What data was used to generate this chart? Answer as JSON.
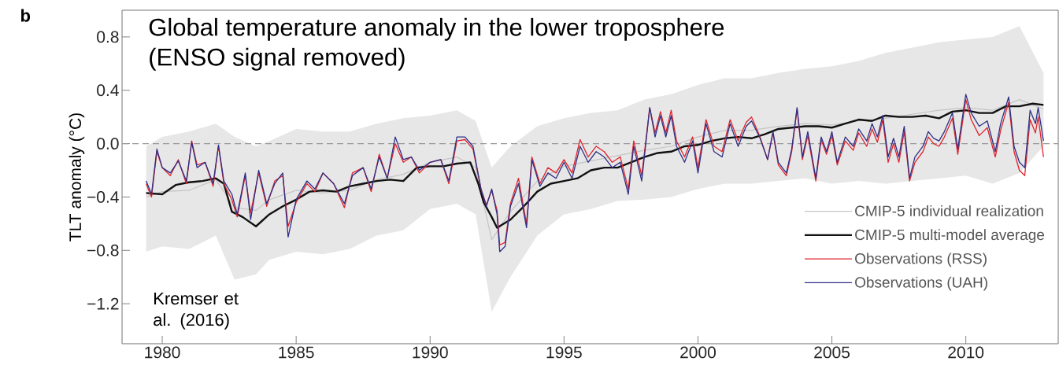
{
  "chart_data": {
    "type": "line",
    "title": "Global temperature anomaly in the lower troposphere",
    "subtitle": "(ENSO signal removed)",
    "ylabel": "TLT anomaly (°C)",
    "annotations": [
      "b",
      "Kremser et al. (2016)"
    ],
    "xlim": [
      1978.5,
      2013.45
    ],
    "ylim": [
      -1.5,
      1.0
    ],
    "xticks": [
      1980,
      1985,
      1990,
      1995,
      2000,
      2005,
      2010
    ],
    "yticks": [
      {
        "value": 0.8,
        "label": "0.8"
      },
      {
        "value": 0.4,
        "label": "0.4"
      },
      {
        "value": 0.0,
        "label": "0.0"
      },
      {
        "value": -0.4,
        "label": "−0.4"
      },
      {
        "value": -0.8,
        "label": "−0.8"
      },
      {
        "value": -1.2,
        "label": "−1.2"
      }
    ],
    "ref_lines": [
      {
        "axis": "y",
        "value": 0.0,
        "color": "#999999",
        "line_style": "dashed"
      }
    ],
    "legend": "bottom right",
    "series": [
      {
        "name": "CMIP-5 individual realization",
        "color": "#c4c4c4",
        "x": [
          1979.4,
          1980,
          1981,
          1982,
          1982.7,
          1983.5,
          1984,
          1985,
          1986,
          1987,
          1988,
          1989,
          1990,
          1991,
          1991.7,
          1992.3,
          1993,
          1994,
          1995,
          1996,
          1997,
          1998,
          1999,
          2000,
          2001,
          2002,
          2003,
          2004,
          2005,
          2006,
          2007,
          2008,
          2009,
          2010,
          2011,
          2012,
          2012.9
        ],
        "values": [
          -0.4,
          -0.36,
          -0.35,
          -0.27,
          -0.48,
          -0.5,
          -0.42,
          -0.35,
          -0.37,
          -0.35,
          -0.27,
          -0.23,
          -0.14,
          -0.1,
          -0.18,
          -0.72,
          -0.51,
          -0.28,
          -0.17,
          -0.13,
          -0.09,
          -0.05,
          -0.02,
          0.05,
          0.1,
          0.1,
          0.13,
          0.15,
          0.14,
          0.17,
          0.19,
          0.22,
          0.25,
          0.27,
          0.25,
          0.33,
          0.26
        ],
        "upper": [
          -0.02,
          0.05,
          0.09,
          0.15,
          0.05,
          -0.02,
          0.02,
          0.11,
          0.09,
          0.09,
          0.15,
          0.19,
          0.21,
          0.25,
          0.17,
          -0.18,
          -0.02,
          0.13,
          0.19,
          0.23,
          0.25,
          0.33,
          0.37,
          0.44,
          0.49,
          0.49,
          0.53,
          0.56,
          0.58,
          0.62,
          0.68,
          0.72,
          0.76,
          0.78,
          0.8,
          0.88,
          0.53
        ],
        "lower": [
          -0.81,
          -0.77,
          -0.79,
          -0.69,
          -1.02,
          -0.98,
          -0.87,
          -0.81,
          -0.83,
          -0.79,
          -0.69,
          -0.65,
          -0.49,
          -0.45,
          -0.53,
          -1.26,
          -1.0,
          -0.69,
          -0.53,
          -0.49,
          -0.43,
          -0.42,
          -0.4,
          -0.34,
          -0.3,
          -0.3,
          -0.28,
          -0.26,
          -0.3,
          -0.28,
          -0.3,
          -0.28,
          -0.26,
          -0.24,
          -0.3,
          -0.22,
          -0.02
        ]
      },
      {
        "name": "CMIP-5 multi-model average",
        "color": "#111111",
        "x": [
          1979.4,
          1980,
          1980.5,
          1981,
          1981.5,
          1982,
          1982.3,
          1982.6,
          1983,
          1983.5,
          1984,
          1984.5,
          1985,
          1985.5,
          1986,
          1986.5,
          1987,
          1987.5,
          1988,
          1988.5,
          1989,
          1989.5,
          1990,
          1990.5,
          1991,
          1991.5,
          1991.8,
          1992,
          1992.3,
          1992.5,
          1993,
          1993.5,
          1994,
          1994.5,
          1995,
          1995.5,
          1996,
          1996.5,
          1997,
          1997.5,
          1998,
          1998.5,
          1999,
          1999.5,
          2000,
          2000.5,
          2001,
          2001.5,
          2002,
          2002.5,
          2003,
          2003.5,
          2004,
          2004.5,
          2005,
          2005.5,
          2006,
          2006.5,
          2007,
          2007.5,
          2008,
          2008.5,
          2009,
          2009.5,
          2010,
          2010.5,
          2011,
          2011.5,
          2012,
          2012.5,
          2012.9
        ],
        "values": [
          -0.37,
          -0.38,
          -0.31,
          -0.29,
          -0.28,
          -0.26,
          -0.3,
          -0.51,
          -0.55,
          -0.62,
          -0.53,
          -0.47,
          -0.42,
          -0.36,
          -0.35,
          -0.36,
          -0.32,
          -0.3,
          -0.28,
          -0.27,
          -0.28,
          -0.18,
          -0.17,
          -0.17,
          -0.15,
          -0.14,
          -0.3,
          -0.44,
          -0.55,
          -0.63,
          -0.57,
          -0.47,
          -0.36,
          -0.3,
          -0.28,
          -0.26,
          -0.2,
          -0.18,
          -0.18,
          -0.14,
          -0.1,
          -0.07,
          -0.06,
          -0.02,
          -0.01,
          0.02,
          0.04,
          0.05,
          0.04,
          0.07,
          0.11,
          0.12,
          0.13,
          0.13,
          0.12,
          0.15,
          0.18,
          0.17,
          0.21,
          0.2,
          0.2,
          0.21,
          0.19,
          0.24,
          0.25,
          0.23,
          0.23,
          0.28,
          0.28,
          0.3,
          0.29
        ]
      },
      {
        "name": "Observations (RSS)",
        "color": "#e0242c",
        "x": [
          1979.4,
          1979.6,
          1979.8,
          1980.0,
          1980.3,
          1980.6,
          1980.9,
          1981.1,
          1981.3,
          1981.6,
          1981.9,
          1982.1,
          1982.3,
          1982.6,
          1982.8,
          1983.1,
          1983.3,
          1983.6,
          1983.9,
          1984.2,
          1984.5,
          1984.7,
          1985,
          1985.4,
          1985.7,
          1986,
          1986.4,
          1986.8,
          1987.1,
          1987.5,
          1987.8,
          1988.1,
          1988.4,
          1988.7,
          1989,
          1989.3,
          1989.6,
          1990,
          1990.4,
          1990.7,
          1991,
          1991.3,
          1991.6,
          1991.9,
          1992.1,
          1992.3,
          1992.5,
          1992.6,
          1992.8,
          1993,
          1993.3,
          1993.6,
          1993.8,
          1994.1,
          1994.4,
          1994.7,
          1995,
          1995.3,
          1995.6,
          1995.9,
          1996.2,
          1996.5,
          1996.8,
          1997.1,
          1997.4,
          1997.6,
          1997.9,
          1998.2,
          1998.4,
          1998.6,
          1998.8,
          1999,
          1999.2,
          1999.5,
          1999.8,
          2000,
          2000.3,
          2000.6,
          2000.9,
          2001.2,
          2001.5,
          2001.8,
          2002,
          2002.3,
          2002.6,
          2002.8,
          2003,
          2003.3,
          2003.5,
          2003.7,
          2003.9,
          2004.1,
          2004.4,
          2004.6,
          2004.8,
          2005,
          2005.2,
          2005.5,
          2005.8,
          2006,
          2006.3,
          2006.5,
          2006.7,
          2006.9,
          2007.1,
          2007.3,
          2007.5,
          2007.7,
          2007.9,
          2008.1,
          2008.4,
          2008.6,
          2008.8,
          2009,
          2009.2,
          2009.5,
          2009.7,
          2010,
          2010.2,
          2010.5,
          2010.8,
          2011.1,
          2011.3,
          2011.6,
          2011.8,
          2012,
          2012.2,
          2012.4,
          2012.6,
          2012.7,
          2012.9
        ],
        "values": [
          -0.3,
          -0.4,
          -0.06,
          -0.18,
          -0.24,
          -0.12,
          -0.3,
          0.02,
          -0.16,
          -0.14,
          -0.32,
          -0.02,
          -0.3,
          -0.42,
          -0.55,
          -0.24,
          -0.52,
          -0.22,
          -0.47,
          -0.28,
          -0.24,
          -0.62,
          -0.44,
          -0.3,
          -0.36,
          -0.22,
          -0.3,
          -0.48,
          -0.22,
          -0.18,
          -0.36,
          -0.08,
          -0.26,
          0.0,
          -0.14,
          -0.1,
          -0.22,
          -0.14,
          -0.12,
          -0.3,
          0.02,
          0.03,
          -0.04,
          -0.34,
          -0.46,
          -0.35,
          -0.5,
          -0.76,
          -0.74,
          -0.45,
          -0.26,
          -0.6,
          -0.1,
          -0.3,
          -0.18,
          -0.22,
          -0.12,
          -0.22,
          0.03,
          -0.1,
          -0.02,
          -0.06,
          -0.14,
          -0.1,
          -0.34,
          0.02,
          -0.24,
          0.27,
          0.08,
          0.24,
          0.08,
          0.25,
          0.02,
          -0.1,
          0.05,
          -0.18,
          0.18,
          -0.02,
          -0.06,
          0.18,
          0.02,
          0.16,
          0.2,
          0.06,
          -0.12,
          0.08,
          -0.16,
          -0.24,
          -0.06,
          0.26,
          -0.12,
          0.06,
          -0.28,
          0.03,
          -0.08,
          0.06,
          -0.16,
          0.02,
          -0.05,
          0.08,
          -0.02,
          0.11,
          0.01,
          0.18,
          -0.14,
          0.0,
          -0.14,
          0.09,
          -0.28,
          -0.14,
          -0.06,
          0.05,
          0.0,
          -0.02,
          0.05,
          0.19,
          -0.08,
          0.33,
          0.18,
          0.06,
          0.12,
          -0.1,
          0.1,
          0.31,
          -0.06,
          -0.2,
          -0.24,
          0.18,
          0.08,
          0.2,
          -0.1
        ]
      },
      {
        "name": "Observations (UAH)",
        "color": "#2e2f86",
        "x": [
          1979.4,
          1979.6,
          1979.8,
          1980.0,
          1980.3,
          1980.6,
          1980.9,
          1981.1,
          1981.3,
          1981.6,
          1981.9,
          1982.1,
          1982.3,
          1982.6,
          1982.8,
          1983.1,
          1983.3,
          1983.6,
          1983.9,
          1984.2,
          1984.5,
          1984.7,
          1985,
          1985.4,
          1985.7,
          1986,
          1986.4,
          1986.8,
          1987.1,
          1987.5,
          1987.8,
          1988.1,
          1988.4,
          1988.7,
          1989,
          1989.3,
          1989.6,
          1990,
          1990.4,
          1990.7,
          1991,
          1991.3,
          1991.6,
          1991.9,
          1992.1,
          1992.3,
          1992.5,
          1992.6,
          1992.8,
          1993,
          1993.3,
          1993.6,
          1993.8,
          1994.1,
          1994.4,
          1994.7,
          1995,
          1995.3,
          1995.6,
          1995.9,
          1996.2,
          1996.5,
          1996.8,
          1997.1,
          1997.4,
          1997.6,
          1997.9,
          1998.2,
          1998.4,
          1998.6,
          1998.8,
          1999,
          1999.2,
          1999.5,
          1999.8,
          2000,
          2000.3,
          2000.6,
          2000.9,
          2001.2,
          2001.5,
          2001.8,
          2002,
          2002.3,
          2002.6,
          2002.8,
          2003,
          2003.3,
          2003.5,
          2003.7,
          2003.9,
          2004.1,
          2004.4,
          2004.6,
          2004.8,
          2005,
          2005.2,
          2005.5,
          2005.8,
          2006,
          2006.3,
          2006.5,
          2006.7,
          2006.9,
          2007.1,
          2007.3,
          2007.5,
          2007.7,
          2007.9,
          2008.1,
          2008.4,
          2008.6,
          2008.8,
          2009,
          2009.2,
          2009.5,
          2009.7,
          2010,
          2010.2,
          2010.5,
          2010.8,
          2011.1,
          2011.3,
          2011.6,
          2011.8,
          2012,
          2012.2,
          2012.4,
          2012.6,
          2012.7,
          2012.9
        ],
        "values": [
          -0.28,
          -0.38,
          -0.04,
          -0.18,
          -0.22,
          -0.13,
          -0.28,
          0.01,
          -0.18,
          -0.14,
          -0.3,
          -0.01,
          -0.28,
          -0.38,
          -0.53,
          -0.22,
          -0.57,
          -0.2,
          -0.45,
          -0.3,
          -0.22,
          -0.7,
          -0.42,
          -0.28,
          -0.34,
          -0.22,
          -0.3,
          -0.45,
          -0.24,
          -0.18,
          -0.34,
          -0.1,
          -0.26,
          0.05,
          -0.12,
          -0.1,
          -0.2,
          -0.14,
          -0.12,
          -0.28,
          0.05,
          0.05,
          -0.02,
          -0.34,
          -0.47,
          -0.34,
          -0.53,
          -0.81,
          -0.77,
          -0.47,
          -0.3,
          -0.63,
          -0.12,
          -0.32,
          -0.22,
          -0.26,
          -0.14,
          -0.26,
          -0.02,
          -0.14,
          -0.06,
          -0.1,
          -0.18,
          -0.14,
          -0.38,
          -0.02,
          -0.28,
          0.27,
          0.05,
          0.21,
          0.05,
          0.21,
          -0.02,
          -0.14,
          0.02,
          -0.22,
          0.15,
          -0.06,
          -0.1,
          0.15,
          -0.02,
          0.13,
          0.17,
          0.05,
          -0.12,
          0.09,
          -0.14,
          -0.22,
          -0.04,
          0.27,
          -0.1,
          0.09,
          -0.26,
          0.05,
          -0.06,
          0.09,
          -0.14,
          0.05,
          -0.02,
          0.11,
          0.02,
          0.15,
          0.05,
          0.21,
          -0.1,
          0.04,
          -0.1,
          0.13,
          -0.26,
          -0.1,
          -0.02,
          0.09,
          0.04,
          0.02,
          0.09,
          0.23,
          -0.04,
          0.37,
          0.23,
          0.13,
          0.17,
          -0.06,
          0.15,
          0.35,
          -0.02,
          -0.14,
          -0.18,
          0.25,
          0.15,
          0.27,
          0.02
        ]
      }
    ]
  }
}
